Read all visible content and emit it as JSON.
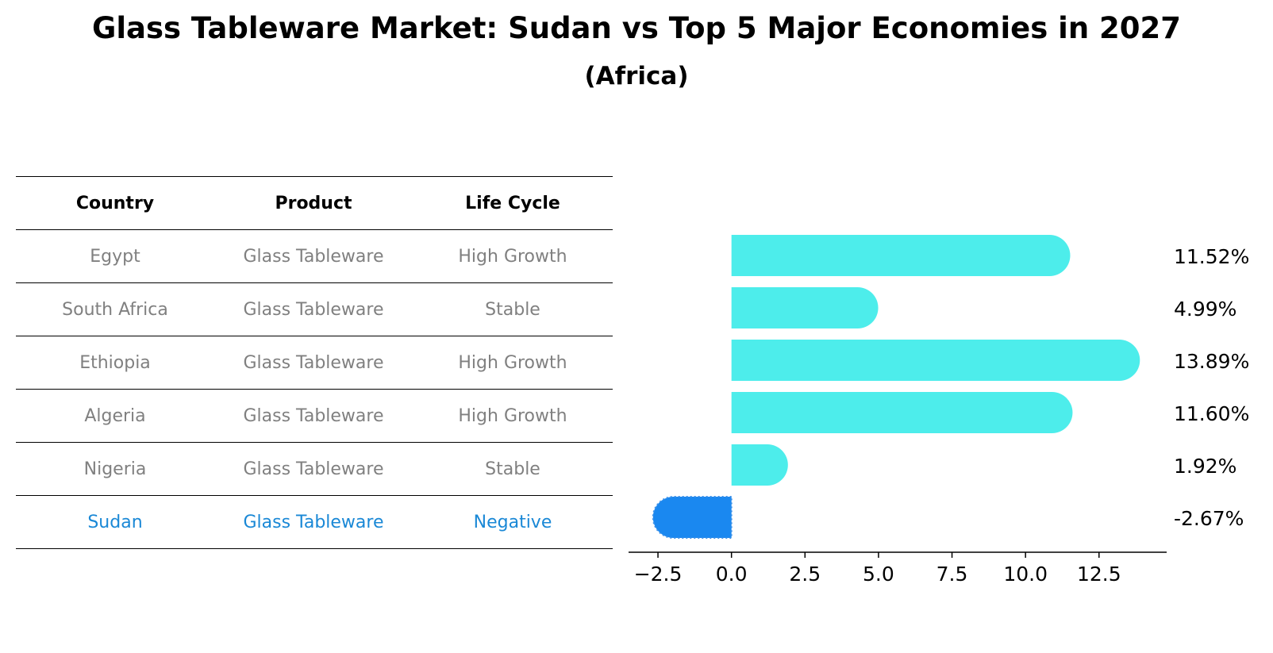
{
  "title": "Glass Tableware Market: Sudan vs Top 5 Major Economies in 2027",
  "subtitle": "(Africa)",
  "table": {
    "headers": [
      "Country",
      "Product",
      "Life Cycle"
    ],
    "rows": [
      [
        "Egypt",
        "Glass Tableware",
        "High Growth"
      ],
      [
        "South Africa",
        "Glass Tableware",
        "Stable"
      ],
      [
        "Ethiopia",
        "Glass Tableware",
        "High Growth"
      ],
      [
        "Algeria",
        "Glass Tableware",
        "High Growth"
      ],
      [
        "Nigeria",
        "Glass Tableware",
        "Stable"
      ],
      [
        "Sudan",
        "Glass Tableware",
        "Negative"
      ]
    ],
    "highlight_row": 5
  },
  "chart_data": {
    "type": "bar",
    "orientation": "horizontal",
    "categories": [
      "Egypt",
      "South Africa",
      "Ethiopia",
      "Algeria",
      "Nigeria",
      "Sudan"
    ],
    "values": [
      11.52,
      4.99,
      13.89,
      11.6,
      1.92,
      -2.67
    ],
    "value_labels": [
      "11.52%",
      "4.99%",
      "13.89%",
      "11.60%",
      "1.92%",
      "-2.67%"
    ],
    "xticks": [
      -2.5,
      0.0,
      2.5,
      5.0,
      7.5,
      10.0,
      12.5
    ],
    "xtick_labels": [
      "−2.5",
      "0.0",
      "2.5",
      "5.0",
      "7.5",
      "10.0",
      "12.5"
    ],
    "xlim": [
      -3.5,
      14.8
    ],
    "colors": {
      "default": "#4dedeb",
      "highlight": "#1a88f0",
      "axis": "#000000",
      "label": "#000000"
    }
  }
}
